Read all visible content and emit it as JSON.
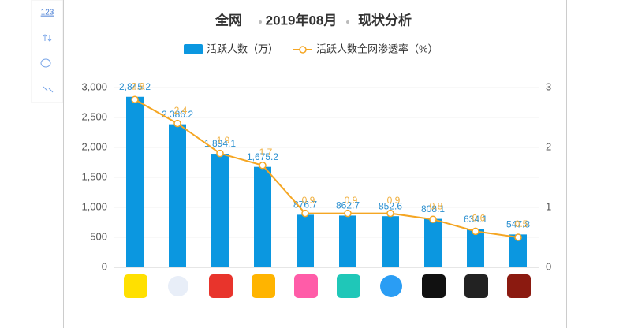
{
  "toolbar_label": "123",
  "chart_data": {
    "type": "bar",
    "title": [
      "全网",
      "2019年08月",
      "现状分析"
    ],
    "categories": [
      null,
      null,
      null,
      null,
      null,
      null,
      null,
      null,
      null,
      null
    ],
    "series": [
      {
        "name": "活跃人数（万）",
        "type": "bar",
        "color": "#0b97e0",
        "values": [
          2845.2,
          2386.2,
          1894.1,
          1675.2,
          876.7,
          862.7,
          852.6,
          808.1,
          634.1,
          547.8
        ],
        "value_labels": [
          "2,845.2",
          "2,386.2",
          "1,894.1",
          "1,675.2",
          "876.7",
          "862.7",
          "852.6",
          "808.1",
          "634.1",
          "547.8"
        ]
      },
      {
        "name": "活跃人数全网渗透率（%）",
        "type": "line",
        "axis": "y2",
        "color": "#f5a623",
        "values": [
          2.8,
          2.4,
          1.9,
          1.7,
          0.9,
          0.9,
          0.9,
          0.8,
          0.6,
          0.5
        ]
      }
    ],
    "ylim": [
      0,
      3000
    ],
    "yticks": [
      0,
      500,
      {
        "value": 1000,
        "label": "1,000"
      },
      {
        "value": 1500,
        "label": "1,500"
      },
      {
        "value": 2000,
        "label": "2,000"
      },
      {
        "value": 2500,
        "label": "2,500"
      },
      {
        "value": 3000,
        "label": "3,000"
      }
    ],
    "y2lim": [
      0,
      3
    ],
    "y2ticks": [
      0,
      1,
      2,
      3
    ],
    "grid": true
  }
}
